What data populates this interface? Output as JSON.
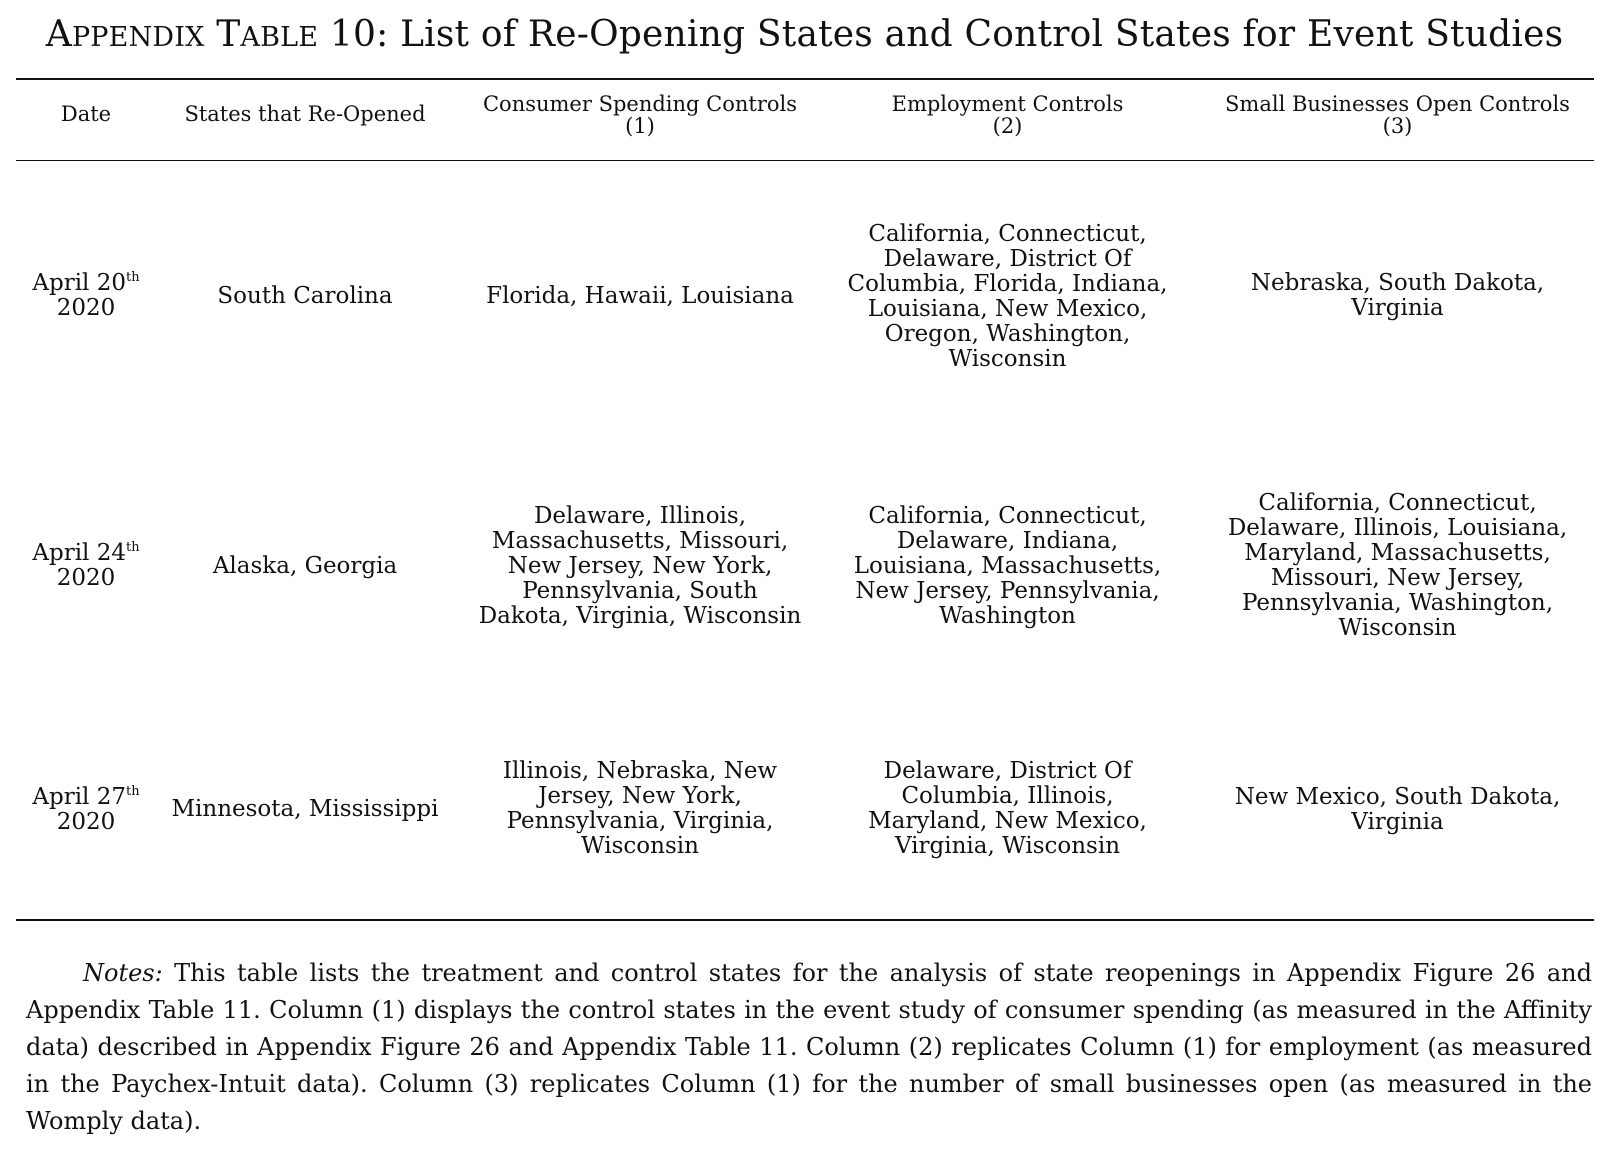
{
  "title": {
    "label_first_A": "A",
    "label_rest_ppendix": "ppendix",
    "label_T": "T",
    "label_able": "able",
    "label_number": "10:",
    "text": "List of Re-Opening States and Control States for Event Studies"
  },
  "header": {
    "date": "Date",
    "states": "States that Re-Opened",
    "col1_name": "Consumer Spending Controls",
    "col1_num": "(1)",
    "col2_name": "Employment Controls",
    "col2_num": "(2)",
    "col3_name": "Small Businesses Open Controls",
    "col3_num": "(3)"
  },
  "rows": [
    {
      "date_month_day": "April 20",
      "date_suffix": "th",
      "date_year": "2020",
      "states": "South Carolina",
      "consumer_lines": [
        "Florida, Hawaii, Louisiana"
      ],
      "employment_lines": [
        "California, Connecticut,",
        "Delaware, District Of",
        "Columbia, Florida, Indiana,",
        "Louisiana, New Mexico,",
        "Oregon, Washington,",
        "Wisconsin"
      ],
      "smallbiz_lines": [
        "Nebraska, South Dakota,",
        "Virginia"
      ]
    },
    {
      "date_month_day": "April 24",
      "date_suffix": "th",
      "date_year": "2020",
      "states": "Alaska, Georgia",
      "consumer_lines": [
        "Delaware, Illinois,",
        "Massachusetts, Missouri,",
        "New Jersey, New York,",
        "Pennsylvania, South",
        "Dakota, Virginia, Wisconsin"
      ],
      "employment_lines": [
        "California, Connecticut,",
        "Delaware, Indiana,",
        "Louisiana, Massachusetts,",
        "New Jersey, Pennsylvania,",
        "Washington"
      ],
      "smallbiz_lines": [
        "California, Connecticut,",
        "Delaware, Illinois, Louisiana,",
        "Maryland, Massachusetts,",
        "Missouri, New Jersey,",
        "Pennsylvania, Washington,",
        "Wisconsin"
      ]
    },
    {
      "date_month_day": "April 27",
      "date_suffix": "th",
      "date_year": "2020",
      "states": "Minnesota, Mississippi",
      "consumer_lines": [
        "Illinois, Nebraska, New",
        "Jersey, New York,",
        "Pennsylvania, Virginia,",
        "Wisconsin"
      ],
      "employment_lines": [
        "Delaware, District Of",
        "Columbia, Illinois,",
        "Maryland, New Mexico,",
        "Virginia, Wisconsin"
      ],
      "smallbiz_lines": [
        "New Mexico, South Dakota,",
        "Virginia"
      ]
    }
  ],
  "notes": {
    "label": "Notes:",
    "text": "This table lists the treatment and control states for the analysis of state reopenings in Appendix Figure 26 and Appendix Table 11. Column (1) displays the control states in the event study of consumer spending (as measured in the Affinity data) described in Appendix Figure 26 and Appendix Table 11. Column (2) replicates Column (1) for employment (as measured in the Paychex-Intuit data). Column (3) replicates Column (1) for the number of small businesses open (as measured in the Womply data)."
  }
}
